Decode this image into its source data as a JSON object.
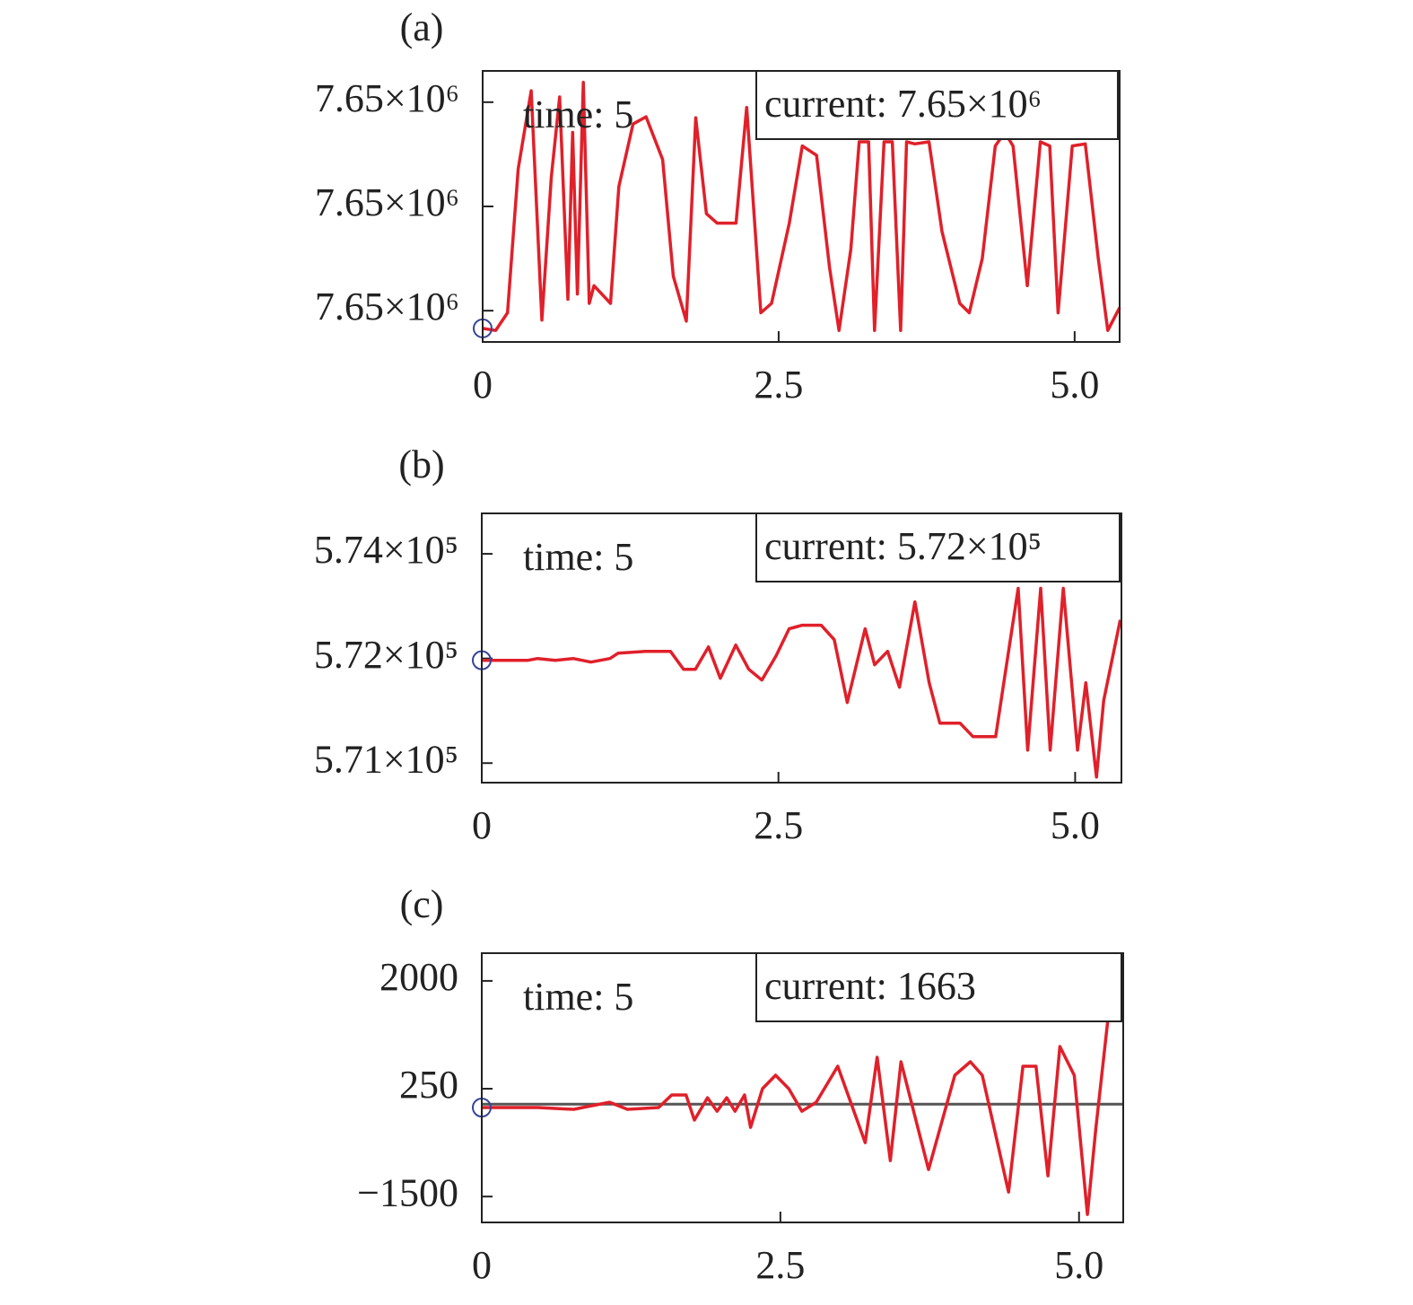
{
  "chart_data": [
    {
      "type": "line",
      "label": "(a)",
      "time_label": "time: 5",
      "current_label": "current: 7.65×10⁶",
      "color": "#e0202a",
      "marker_color": "#33449a",
      "x": [
        0,
        0.11,
        0.21,
        0.3,
        0.41,
        0.5,
        0.58,
        0.65,
        0.72,
        0.76,
        0.8,
        0.85,
        0.9,
        0.94,
        1.08,
        1.15,
        1.27,
        1.38,
        1.52,
        1.61,
        1.72,
        1.8,
        1.89,
        1.98,
        2.14,
        2.23,
        2.35,
        2.44,
        2.59,
        2.7,
        2.82,
        2.93,
        3.01,
        3.11,
        3.18,
        3.26,
        3.31,
        3.39,
        3.46,
        3.53,
        3.58,
        3.65,
        3.77,
        3.88,
        4.03,
        4.11,
        4.22,
        4.33,
        4.41,
        4.48,
        4.6,
        4.71,
        4.79,
        4.86,
        4.98,
        5.09,
        5.2,
        5.28,
        5.38
      ],
      "values": [
        7649883,
        7649881,
        7649898,
        7650036,
        7650111,
        7649891,
        7650028,
        7650105,
        7649911,
        7650071,
        7649916,
        7650119,
        7649907,
        7649924,
        7649907,
        7650019,
        7650079,
        7650086,
        7650045,
        7649933,
        7649890,
        7650085,
        7649993,
        7649984,
        7649984,
        7650095,
        7649898,
        7649907,
        7649984,
        7650058,
        7650049,
        7649941,
        7649881,
        7649959,
        7650062,
        7650062,
        7649881,
        7650062,
        7650062,
        7649881,
        7650062,
        7650060,
        7650062,
        7649976,
        7649907,
        7649898,
        7649950,
        7650058,
        7650071,
        7650058,
        7649924,
        7650062,
        7650058,
        7649898,
        7650058,
        7650060,
        7649950,
        7649881,
        7649903
      ],
      "xlim": [
        0,
        5.38
      ],
      "xticks": [
        0,
        2.5,
        {
          "value": 5,
          "label": "5.0"
        }
      ],
      "ylim": [
        7649870,
        7650130
      ],
      "yticks": [
        {
          "value": 7649900,
          "label": "7.65×10⁶"
        },
        {
          "value": 7650000,
          "label": "7.65×10⁶"
        },
        {
          "value": 7650100,
          "label": "7.65×10⁶"
        }
      ]
    },
    {
      "type": "line",
      "label": "(b)",
      "time_label": "time: 5",
      "current_label": "current: 5.72×10⁵",
      "color": "#e0202a",
      "marker_color": "#33449a",
      "x": [
        0,
        0.17,
        0.39,
        0.47,
        0.62,
        0.77,
        0.92,
        1.08,
        1.15,
        1.38,
        1.59,
        1.7,
        1.8,
        1.91,
        2.01,
        2.14,
        2.25,
        2.36,
        2.48,
        2.59,
        2.7,
        2.86,
        2.97,
        3.08,
        3.23,
        3.31,
        3.42,
        3.52,
        3.65,
        3.77,
        3.86,
        4.03,
        4.14,
        4.33,
        4.41,
        4.52,
        4.6,
        4.71,
        4.79,
        4.9,
        5.02,
        5.09,
        5.18,
        5.24,
        5.38
      ],
      "values": [
        571974,
        571974,
        571974,
        572000,
        571974,
        572000,
        571948,
        572000,
        572077,
        572103,
        572103,
        571845,
        571845,
        572167,
        571717,
        572193,
        571845,
        571691,
        572039,
        572425,
        572477,
        572477,
        572270,
        571369,
        572425,
        571910,
        572103,
        571588,
        572811,
        571652,
        571073,
        571073,
        570879,
        570879,
        571781,
        573005,
        570686,
        573005,
        570686,
        573005,
        570686,
        571652,
        570300,
        571395,
        572554
      ],
      "xlim": [
        0,
        5.39
      ],
      "xticks": [
        0,
        2.5,
        {
          "value": 5,
          "label": "5.0"
        }
      ],
      "ylim": [
        570220,
        574080
      ],
      "yticks": [
        {
          "value": 570500,
          "label": "5.71×10⁵"
        },
        {
          "value": 572000,
          "label": "5.72×10⁵"
        },
        {
          "value": 573500,
          "label": "5.74×10⁵"
        }
      ]
    },
    {
      "type": "line",
      "label": "(c)",
      "time_label": "time: 5",
      "current_label": "current: 1663",
      "color": "#e0202a",
      "marker_color": "#33449a",
      "reference_line": 0,
      "reference_color": "#555555",
      "x": [
        0,
        0.47,
        0.77,
        0.92,
        1.07,
        1.22,
        1.48,
        1.59,
        1.71,
        1.78,
        1.89,
        1.97,
        2.05,
        2.12,
        2.2,
        2.25,
        2.35,
        2.46,
        2.57,
        2.68,
        2.8,
        2.98,
        3.21,
        3.31,
        3.42,
        3.51,
        3.74,
        3.96,
        4.09,
        4.19,
        4.41,
        4.53,
        4.64,
        4.74,
        4.84,
        4.96,
        5.07,
        5.14,
        5.24
      ],
      "values": [
        -56,
        -56,
        -85,
        -27,
        31,
        -85,
        -56,
        148,
        148,
        -260,
        104,
        -115,
        104,
        -115,
        148,
        -377,
        250,
        469,
        250,
        -115,
        31,
        615,
        -625,
        760,
        -916,
        687,
        -1062,
        469,
        687,
        469,
        -1427,
        615,
        615,
        -1164,
        935,
        469,
        -1791,
        -406,
        1344
      ],
      "xlim": [
        0,
        5.37
      ],
      "xticks": [
        0,
        2.5,
        {
          "value": 5,
          "label": "5.0"
        }
      ],
      "ylim": [
        -1920,
        2450
      ],
      "yticks": [
        {
          "value": -1500,
          "label": "−1500"
        },
        250,
        2000
      ]
    }
  ]
}
